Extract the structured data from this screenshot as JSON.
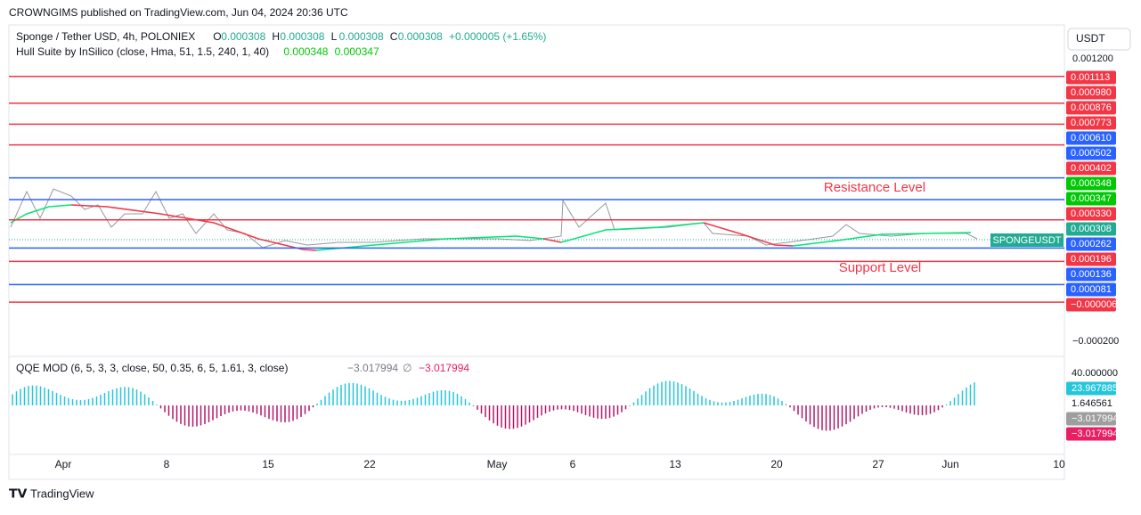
{
  "header": {
    "publisher": "CROWNGIMS published on TradingView.com, Jun 04, 2024 20:36 UTC"
  },
  "legend": {
    "symbol": "Sponge / Tether USD, 4h, POLONIEX",
    "ohlc": [
      {
        "key": "O",
        "value": "0.000308"
      },
      {
        "key": "H",
        "value": "0.000308"
      },
      {
        "key": "L",
        "value": "0.000308"
      },
      {
        "key": "C",
        "value": "0.000308"
      }
    ],
    "change": "+0.000005 (+1.65%)",
    "indicator": "Hull Suite by InSilico (close, Hma, 51, 1.5, 240, 1, 40)",
    "indicator_values": [
      "0.000348",
      "0.000347"
    ]
  },
  "annotations": {
    "resistance": "Resistance Level",
    "support": "Support Level",
    "symbol_tag": "SPONGEUSDT"
  },
  "price_scale": {
    "currency": "USDT",
    "top": {
      "value": 0.0012,
      "label": "0.001200"
    },
    "bottom": {
      "value": -0.0002,
      "label": "−0.000200"
    },
    "labels": [
      {
        "value": 0.001113,
        "label": "0.001113",
        "color": "#f23645",
        "line": true
      },
      {
        "value": 0.00098,
        "label": "0.000980",
        "color": "#f23645",
        "line": true
      },
      {
        "value": 0.000876,
        "label": "0.000876",
        "color": "#f23645",
        "line": true
      },
      {
        "value": 0.000773,
        "label": "0.000773",
        "color": "#f23645",
        "line": true
      },
      {
        "value": 0.00061,
        "label": "0.000610",
        "color": "#2962ff",
        "line": true
      },
      {
        "value": 0.000502,
        "label": "0.000502",
        "color": "#2962ff",
        "line": true
      },
      {
        "value": 0.000402,
        "label": "0.000402",
        "color": "#f23645",
        "line": true
      },
      {
        "value": 0.000348,
        "label": "0.000348",
        "color": "#00c805",
        "line": false
      },
      {
        "value": 0.000347,
        "label": "0.000347",
        "color": "#00c805",
        "line": false
      },
      {
        "value": 0.00033,
        "label": "0.000330",
        "color": "#f23645",
        "line": false
      },
      {
        "value": 0.000308,
        "label": "0.000308",
        "color": "#22ab94",
        "line": false
      },
      {
        "value": 0.000262,
        "label": "0.000262",
        "color": "#2962ff",
        "line": true
      },
      {
        "value": 0.000196,
        "label": "0.000196",
        "color": "#f23645",
        "line": true
      },
      {
        "value": 0.000136,
        "label": "0.000136",
        "color": "#2962ff",
        "line": false
      },
      {
        "value": 8.1e-05,
        "label": "0.000081",
        "color": "#2962ff",
        "line": true
      },
      {
        "value": -6e-06,
        "label": "−0.000006",
        "color": "#f23645",
        "line": true
      }
    ]
  },
  "qqe": {
    "title": "QQE MOD (6, 5, 3, 3, close, 50, 0.35, 6, 5, 1.61, 3, close)",
    "value_a": "−3.017994",
    "symbol": "∅",
    "value_b": "−3.017994",
    "scale": [
      {
        "label": "40.000000",
        "color": null
      },
      {
        "label": "23.967885",
        "color": "#26c6da"
      },
      {
        "label": "1.646561",
        "color": null
      },
      {
        "label": "−3.017994",
        "color": "#9e9e9e"
      },
      {
        "label": "−3.017994",
        "color": "#e91e63"
      }
    ]
  },
  "time_axis": [
    "Apr",
    "8",
    "15",
    "22",
    "May",
    "6",
    "13",
    "20",
    "27",
    "Jun",
    "10"
  ],
  "footer": {
    "brand": "TradingView"
  }
}
